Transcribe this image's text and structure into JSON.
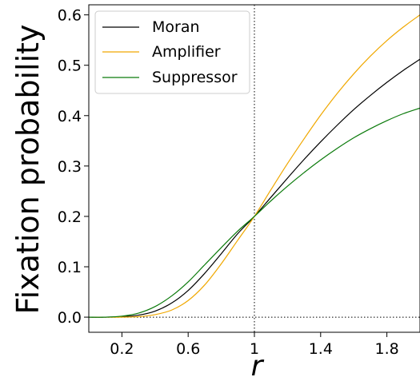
{
  "chart_data": {
    "type": "line",
    "xlabel": "r",
    "ylabel": "Fixation probability",
    "xlim": [
      0.0,
      2.0
    ],
    "ylim": [
      -0.03,
      0.62
    ],
    "xticks": [
      0.2,
      0.6,
      1.0,
      1.4,
      1.8
    ],
    "xtick_labels": [
      "0.2",
      "0.6",
      "1",
      "1.4",
      "1.8"
    ],
    "yticks": [
      0.0,
      0.1,
      0.2,
      0.3,
      0.4,
      0.5,
      0.6
    ],
    "ytick_labels": [
      "0.0",
      "0.1",
      "0.2",
      "0.3",
      "0.4",
      "0.5",
      "0.6"
    ],
    "reference_lines": {
      "vertical_x": 1.0,
      "horizontal_y": 0.0,
      "style": "dotted"
    },
    "legend": {
      "placement": "top-left"
    },
    "x": [
      0.0,
      0.1,
      0.2,
      0.3,
      0.4,
      0.5,
      0.6,
      0.7,
      0.8,
      0.9,
      1.0,
      1.1,
      1.2,
      1.3,
      1.4,
      1.5,
      1.6,
      1.7,
      1.8,
      1.9,
      2.0
    ],
    "series": [
      {
        "name": "Moran",
        "color": "#000000",
        "values": [
          0.0,
          0.0,
          0.001,
          0.004,
          0.012,
          0.028,
          0.053,
          0.087,
          0.126,
          0.166,
          0.2,
          0.238,
          0.276,
          0.313,
          0.348,
          0.381,
          0.412,
          0.44,
          0.466,
          0.49,
          0.512
        ]
      },
      {
        "name": "Amplifier",
        "color": "#f0a800",
        "values": [
          0.0,
          0.0,
          0.0,
          0.001,
          0.005,
          0.014,
          0.033,
          0.064,
          0.106,
          0.153,
          0.2,
          0.253,
          0.305,
          0.354,
          0.401,
          0.444,
          0.483,
          0.518,
          0.549,
          0.576,
          0.6
        ]
      },
      {
        "name": "Suppressor",
        "color": "#0a7a0a",
        "values": [
          0.0,
          0.0,
          0.002,
          0.008,
          0.021,
          0.042,
          0.07,
          0.104,
          0.138,
          0.171,
          0.2,
          0.231,
          0.26,
          0.287,
          0.312,
          0.335,
          0.356,
          0.374,
          0.39,
          0.404,
          0.415
        ]
      }
    ]
  }
}
